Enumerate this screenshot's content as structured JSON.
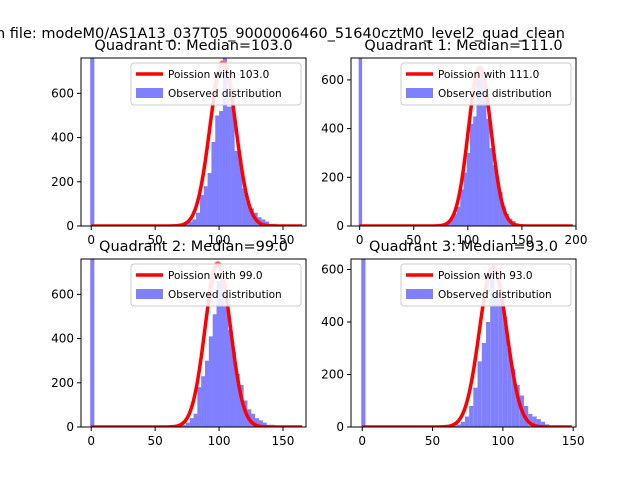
{
  "suptitle": "n file: modeM0/AS1A13_037T05_9000006460_51640cztM0_level2_quad_clean",
  "chart_data": [
    {
      "type": "bar",
      "title": "Quadrant 0: Median=103.0",
      "median": 103.0,
      "xlim": [
        -8,
        168
      ],
      "ylim": [
        0,
        760
      ],
      "xticks": [
        0,
        50,
        100,
        150
      ],
      "yticks": [
        0,
        200,
        400,
        600
      ],
      "xtick_labels": [
        "0",
        "50",
        "100",
        "150"
      ],
      "ytick_labels": [
        "0",
        "200",
        "400",
        "600"
      ],
      "series": [
        {
          "name": "Poission with 103.0",
          "kind": "line",
          "color": "#ff0000",
          "peak": 740
        },
        {
          "name": "Observed distribution",
          "kind": "hist",
          "color": "#8080ff",
          "zero_bin": 760,
          "bin_width": 3.2,
          "bins": [
            [
              70,
              5
            ],
            [
              73,
              10
            ],
            [
              76,
              20
            ],
            [
              79,
              30
            ],
            [
              82,
              60
            ],
            [
              85,
              140
            ],
            [
              88,
              180
            ],
            [
              91,
              240
            ],
            [
              94,
              380
            ],
            [
              97,
              500
            ],
            [
              100,
              520
            ],
            [
              103,
              770
            ],
            [
              106,
              540
            ],
            [
              109,
              540
            ],
            [
              112,
              340
            ],
            [
              115,
              300
            ],
            [
              118,
              170
            ],
            [
              121,
              110
            ],
            [
              124,
              80
            ],
            [
              127,
              60
            ],
            [
              130,
              40
            ],
            [
              133,
              30
            ],
            [
              136,
              20
            ],
            [
              139,
              10
            ],
            [
              142,
              10
            ],
            [
              145,
              5
            ]
          ]
        }
      ],
      "legend_loc": "upper right"
    },
    {
      "type": "bar",
      "title": "Quadrant 1: Median=111.0",
      "median": 111.0,
      "xlim": [
        -8,
        200
      ],
      "ylim": [
        0,
        690
      ],
      "xticks": [
        0,
        50,
        100,
        150,
        200
      ],
      "yticks": [
        0,
        200,
        400,
        600
      ],
      "xtick_labels": [
        "0",
        "50",
        "100",
        "150",
        "200"
      ],
      "ytick_labels": [
        "0",
        "200",
        "400",
        "600"
      ],
      "series": [
        {
          "name": "Poission with 111.0",
          "kind": "line",
          "color": "#ff0000",
          "peak": 650
        },
        {
          "name": "Observed distribution",
          "kind": "hist",
          "color": "#8080ff",
          "zero_bin": 690,
          "bin_width": 3.2,
          "bins": [
            [
              75,
              5
            ],
            [
              78,
              10
            ],
            [
              81,
              20
            ],
            [
              84,
              30
            ],
            [
              87,
              50
            ],
            [
              90,
              80
            ],
            [
              93,
              150
            ],
            [
              96,
              220
            ],
            [
              99,
              300
            ],
            [
              102,
              420
            ],
            [
              105,
              450
            ],
            [
              108,
              600
            ],
            [
              111,
              650
            ],
            [
              114,
              580
            ],
            [
              117,
              440
            ],
            [
              120,
              320
            ],
            [
              123,
              250
            ],
            [
              126,
              190
            ],
            [
              129,
              140
            ],
            [
              132,
              80
            ],
            [
              135,
              50
            ],
            [
              138,
              30
            ],
            [
              141,
              20
            ],
            [
              144,
              10
            ],
            [
              147,
              5
            ]
          ]
        }
      ],
      "legend_loc": "upper right"
    },
    {
      "type": "bar",
      "title": "Quadrant 2: Median=99.0",
      "median": 99.0,
      "xlim": [
        -8,
        168
      ],
      "ylim": [
        0,
        760
      ],
      "xticks": [
        0,
        50,
        100,
        150
      ],
      "yticks": [
        0,
        200,
        400,
        600
      ],
      "xtick_labels": [
        "0",
        "50",
        "100",
        "150"
      ],
      "ytick_labels": [
        "0",
        "200",
        "400",
        "600"
      ],
      "series": [
        {
          "name": "Poission with 99.0",
          "kind": "line",
          "color": "#ff0000",
          "peak": 740
        },
        {
          "name": "Observed distribution",
          "kind": "hist",
          "color": "#8080ff",
          "zero_bin": 760,
          "bin_width": 3.2,
          "bins": [
            [
              68,
              5
            ],
            [
              71,
              10
            ],
            [
              74,
              20
            ],
            [
              77,
              40
            ],
            [
              80,
              60
            ],
            [
              83,
              180
            ],
            [
              86,
              230
            ],
            [
              89,
              300
            ],
            [
              92,
              410
            ],
            [
              95,
              510
            ],
            [
              98,
              660
            ],
            [
              101,
              690
            ],
            [
              104,
              550
            ],
            [
              107,
              440
            ],
            [
              110,
              340
            ],
            [
              113,
              240
            ],
            [
              116,
              190
            ],
            [
              119,
              120
            ],
            [
              122,
              80
            ],
            [
              125,
              60
            ],
            [
              128,
              40
            ],
            [
              131,
              30
            ],
            [
              134,
              20
            ],
            [
              137,
              10
            ],
            [
              140,
              10
            ]
          ]
        }
      ],
      "legend_loc": "upper right"
    },
    {
      "type": "bar",
      "title": "Quadrant 3: Median=93.0",
      "median": 93.0,
      "xlim": [
        -8,
        152
      ],
      "ylim": [
        0,
        640
      ],
      "xticks": [
        0,
        50,
        100,
        150
      ],
      "yticks": [
        0,
        200,
        400,
        600
      ],
      "xtick_labels": [
        "0",
        "50",
        "100",
        "150"
      ],
      "ytick_labels": [
        "0",
        "200",
        "400",
        "600"
      ],
      "series": [
        {
          "name": "Poission with 93.0",
          "kind": "line",
          "color": "#ff0000",
          "peak": 610
        },
        {
          "name": "Observed distribution",
          "kind": "hist",
          "color": "#8080ff",
          "zero_bin": 640,
          "bin_width": 3.0,
          "bins": [
            [
              64,
              5
            ],
            [
              67,
              10
            ],
            [
              70,
              20
            ],
            [
              73,
              40
            ],
            [
              76,
              80
            ],
            [
              79,
              150
            ],
            [
              82,
              250
            ],
            [
              85,
              320
            ],
            [
              88,
              400
            ],
            [
              91,
              600
            ],
            [
              94,
              510
            ],
            [
              97,
              490
            ],
            [
              100,
              420
            ],
            [
              103,
              300
            ],
            [
              106,
              220
            ],
            [
              109,
              160
            ],
            [
              112,
              120
            ],
            [
              115,
              80
            ],
            [
              118,
              50
            ],
            [
              121,
              40
            ],
            [
              124,
              30
            ],
            [
              127,
              20
            ],
            [
              130,
              10
            ],
            [
              133,
              5
            ]
          ]
        }
      ],
      "legend_loc": "upper right"
    }
  ]
}
